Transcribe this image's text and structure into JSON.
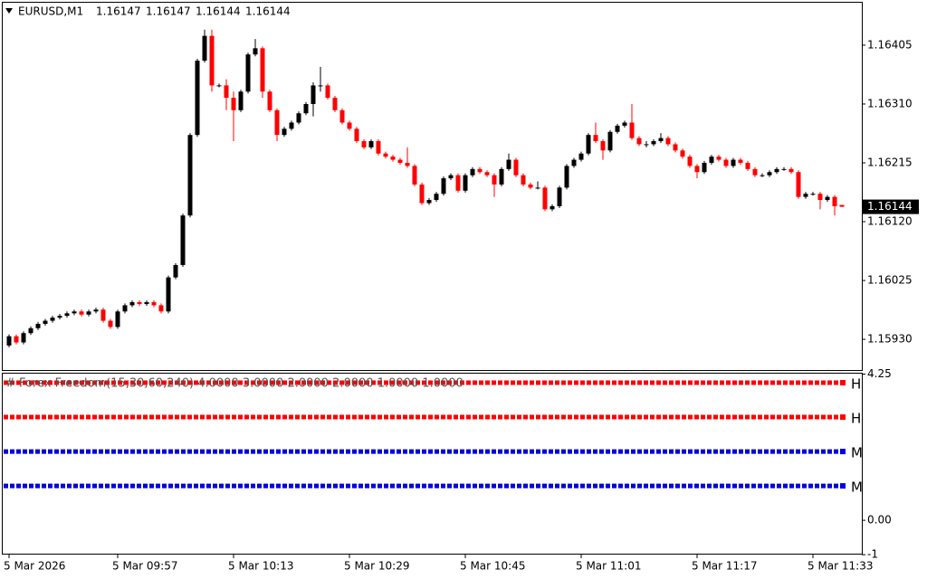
{
  "chart_data": [
    {
      "type": "candlestick",
      "title": "EURUSD,M1",
      "title_prices": [
        1.16147,
        1.16147,
        1.16144,
        1.16144
      ],
      "up_color": "#000000",
      "down_color": "#ff0000",
      "categories": [
        "5 Mar 2026",
        null,
        null,
        null,
        null,
        null,
        null,
        null,
        null,
        null,
        null,
        null,
        null,
        null,
        null,
        "5 Mar 09:57",
        null,
        null,
        null,
        null,
        null,
        null,
        null,
        null,
        null,
        null,
        null,
        null,
        null,
        null,
        null,
        "5 Mar 10:13",
        null,
        null,
        null,
        null,
        null,
        null,
        null,
        null,
        null,
        null,
        null,
        null,
        null,
        null,
        null,
        "5 Mar 10:29",
        null,
        null,
        null,
        null,
        null,
        null,
        null,
        null,
        null,
        null,
        null,
        null,
        null,
        null,
        null,
        "5 Mar 10:45",
        null,
        null,
        null,
        null,
        null,
        null,
        null,
        null,
        null,
        null,
        null,
        null,
        null,
        null,
        null,
        "5 Mar 11:01",
        null,
        null,
        null,
        null,
        null,
        null,
        null,
        null,
        null,
        null,
        null,
        null,
        null,
        null,
        null,
        "5 Mar 11:17",
        null,
        null,
        null,
        null,
        null,
        null,
        null,
        null,
        null,
        null,
        null,
        null,
        null,
        null,
        null,
        "5 Mar 11:33",
        null,
        null,
        null,
        null
      ],
      "ohlc": [
        [
          1.1592,
          1.15938,
          1.15917,
          1.15935
        ],
        [
          1.15935,
          1.15938,
          1.15922,
          1.15925
        ],
        [
          1.15925,
          1.15943,
          1.15922,
          1.1594
        ],
        [
          1.1594,
          1.15951,
          1.15937,
          1.15948
        ],
        [
          1.15948,
          1.15958,
          1.15945,
          1.15955
        ],
        [
          1.15955,
          1.15963,
          1.15952,
          1.1596
        ],
        [
          1.1596,
          1.15968,
          1.15957,
          1.15965
        ],
        [
          1.15965,
          1.15971,
          1.15962,
          1.15968
        ],
        [
          1.15968,
          1.15975,
          1.15965,
          1.15972
        ],
        [
          1.15972,
          1.15978,
          1.15969,
          1.15975
        ],
        [
          1.15975,
          1.15978,
          1.15967,
          1.1597
        ],
        [
          1.1597,
          1.15978,
          1.15967,
          1.15975
        ],
        [
          1.15975,
          1.15981,
          1.15972,
          1.15978
        ],
        [
          1.15978,
          1.15981,
          1.15957,
          1.1596
        ],
        [
          1.1596,
          1.15963,
          1.15947,
          1.1595
        ],
        [
          1.1595,
          1.15978,
          1.15947,
          1.15975
        ],
        [
          1.15975,
          1.15988,
          1.15972,
          1.15985
        ],
        [
          1.15985,
          1.15993,
          1.15982,
          1.1599
        ],
        [
          1.1599,
          1.15993,
          1.15984,
          1.15987
        ],
        [
          1.15987,
          1.15993,
          1.15984,
          1.1599
        ],
        [
          1.1599,
          1.15993,
          1.15982,
          1.15985
        ],
        [
          1.15985,
          1.15988,
          1.15972,
          1.15975
        ],
        [
          1.15975,
          1.16033,
          1.15972,
          1.1603
        ],
        [
          1.1603,
          1.16053,
          1.16027,
          1.1605
        ],
        [
          1.1605,
          1.16133,
          1.16047,
          1.1613
        ],
        [
          1.1613,
          1.16263,
          1.16127,
          1.1626
        ],
        [
          1.1626,
          1.16383,
          1.16257,
          1.1638
        ],
        [
          1.1638,
          1.1643,
          1.16377,
          1.1642
        ],
        [
          1.1642,
          1.1643,
          1.1633,
          1.1634
        ],
        [
          1.1634,
          1.16343,
          1.16337,
          1.1634
        ],
        [
          1.1634,
          1.1635,
          1.163,
          1.1632
        ],
        [
          1.1632,
          1.1633,
          1.1625,
          1.163
        ],
        [
          1.163,
          1.16333,
          1.16297,
          1.1633
        ],
        [
          1.1633,
          1.16393,
          1.16327,
          1.1639
        ],
        [
          1.1639,
          1.16415,
          1.16387,
          1.164
        ],
        [
          1.164,
          1.16403,
          1.1632,
          1.1633
        ],
        [
          1.1633,
          1.16333,
          1.16297,
          1.163
        ],
        [
          1.163,
          1.16303,
          1.1625,
          1.1626
        ],
        [
          1.1626,
          1.16273,
          1.16257,
          1.1627
        ],
        [
          1.1627,
          1.16283,
          1.16267,
          1.1628
        ],
        [
          1.1628,
          1.16298,
          1.16277,
          1.16295
        ],
        [
          1.16295,
          1.16313,
          1.16292,
          1.1631
        ],
        [
          1.1631,
          1.16345,
          1.1629,
          1.1634
        ],
        [
          1.1634,
          1.1637,
          1.1633,
          1.1634
        ],
        [
          1.1634,
          1.16343,
          1.16317,
          1.1632
        ],
        [
          1.1632,
          1.16323,
          1.16297,
          1.163
        ],
        [
          1.163,
          1.16303,
          1.16277,
          1.1628
        ],
        [
          1.1628,
          1.16283,
          1.16267,
          1.1627
        ],
        [
          1.1627,
          1.16273,
          1.16247,
          1.1625
        ],
        [
          1.1625,
          1.16253,
          1.16237,
          1.1624
        ],
        [
          1.1624,
          1.16253,
          1.16237,
          1.1625
        ],
        [
          1.1625,
          1.16253,
          1.16227,
          1.1623
        ],
        [
          1.1623,
          1.16233,
          1.16222,
          1.16225
        ],
        [
          1.16225,
          1.16228,
          1.16217,
          1.1622
        ],
        [
          1.1622,
          1.16223,
          1.16212,
          1.16215
        ],
        [
          1.16215,
          1.1624,
          1.16207,
          1.1621
        ],
        [
          1.1621,
          1.16213,
          1.16177,
          1.1618
        ],
        [
          1.1618,
          1.16183,
          1.16147,
          1.1615
        ],
        [
          1.1615,
          1.16158,
          1.16147,
          1.16155
        ],
        [
          1.16155,
          1.16168,
          1.16152,
          1.16165
        ],
        [
          1.16165,
          1.16193,
          1.16162,
          1.1619
        ],
        [
          1.1619,
          1.16198,
          1.16187,
          1.16195
        ],
        [
          1.16195,
          1.16198,
          1.16167,
          1.1617
        ],
        [
          1.1617,
          1.16198,
          1.16167,
          1.16195
        ],
        [
          1.16195,
          1.16208,
          1.16192,
          1.16205
        ],
        [
          1.16205,
          1.16208,
          1.16197,
          1.162
        ],
        [
          1.162,
          1.16203,
          1.16192,
          1.16195
        ],
        [
          1.16195,
          1.16198,
          1.1616,
          1.1618
        ],
        [
          1.1618,
          1.16208,
          1.16177,
          1.16205
        ],
        [
          1.16205,
          1.1623,
          1.16202,
          1.1622
        ],
        [
          1.1622,
          1.16223,
          1.16192,
          1.16195
        ],
        [
          1.16195,
          1.16198,
          1.16177,
          1.1618
        ],
        [
          1.1618,
          1.16183,
          1.16172,
          1.16175
        ],
        [
          1.16175,
          1.16185,
          1.16172,
          1.16175
        ],
        [
          1.16175,
          1.16178,
          1.16137,
          1.1614
        ],
        [
          1.1614,
          1.16148,
          1.16137,
          1.16145
        ],
        [
          1.16145,
          1.16178,
          1.16142,
          1.16175
        ],
        [
          1.16175,
          1.16213,
          1.16172,
          1.1621
        ],
        [
          1.1621,
          1.16223,
          1.16207,
          1.1622
        ],
        [
          1.1622,
          1.16233,
          1.16217,
          1.1623
        ],
        [
          1.1623,
          1.16263,
          1.16227,
          1.1626
        ],
        [
          1.1626,
          1.1628,
          1.16247,
          1.1625
        ],
        [
          1.1625,
          1.16253,
          1.1622,
          1.16235
        ],
        [
          1.16235,
          1.16268,
          1.16232,
          1.16265
        ],
        [
          1.16265,
          1.16278,
          1.16262,
          1.16275
        ],
        [
          1.16275,
          1.16283,
          1.16272,
          1.1628
        ],
        [
          1.1628,
          1.1631,
          1.16252,
          1.16255
        ],
        [
          1.16255,
          1.16258,
          1.16242,
          1.16245
        ],
        [
          1.16245,
          1.1625,
          1.1624,
          1.16245
        ],
        [
          1.16245,
          1.16253,
          1.16242,
          1.1625
        ],
        [
          1.1625,
          1.16263,
          1.16247,
          1.16255
        ],
        [
          1.16255,
          1.16258,
          1.16242,
          1.16245
        ],
        [
          1.16245,
          1.16248,
          1.16232,
          1.16235
        ],
        [
          1.16235,
          1.16238,
          1.16222,
          1.16225
        ],
        [
          1.16225,
          1.16228,
          1.16207,
          1.1621
        ],
        [
          1.1621,
          1.16213,
          1.1619,
          1.162
        ],
        [
          1.162,
          1.16218,
          1.16197,
          1.16215
        ],
        [
          1.16215,
          1.16228,
          1.16212,
          1.16225
        ],
        [
          1.16225,
          1.16228,
          1.16217,
          1.1622
        ],
        [
          1.1622,
          1.16223,
          1.16207,
          1.1621
        ],
        [
          1.1621,
          1.16223,
          1.16207,
          1.1622
        ],
        [
          1.1622,
          1.16223,
          1.16212,
          1.16215
        ],
        [
          1.16215,
          1.16218,
          1.16202,
          1.16205
        ],
        [
          1.16205,
          1.16208,
          1.16192,
          1.16195
        ],
        [
          1.16195,
          1.16198,
          1.16192,
          1.16195
        ],
        [
          1.16195,
          1.16203,
          1.16192,
          1.162
        ],
        [
          1.162,
          1.16208,
          1.16197,
          1.16205
        ],
        [
          1.16205,
          1.16208,
          1.16202,
          1.16205
        ],
        [
          1.16205,
          1.16208,
          1.16197,
          1.162
        ],
        [
          1.162,
          1.16203,
          1.16157,
          1.1616
        ],
        [
          1.1616,
          1.16168,
          1.16157,
          1.16165
        ],
        [
          1.16165,
          1.16168,
          1.16162,
          1.16165
        ],
        [
          1.16165,
          1.16168,
          1.1614,
          1.16155
        ],
        [
          1.16155,
          1.16163,
          1.16152,
          1.1616
        ],
        [
          1.1616,
          1.16163,
          1.1613,
          1.16145
        ],
        [
          1.16147,
          1.16147,
          1.16144,
          1.16144
        ]
      ],
      "ylim": [
        1.15879,
        1.16475
      ],
      "yticks": [
        1.16405,
        {
          "value": 1.1631,
          "label": "1.16310"
        },
        1.16215,
        {
          "value": 1.1612,
          "label": "1.16120"
        },
        1.16025,
        {
          "value": 1.1593,
          "label": "1.15930"
        }
      ]
    },
    {
      "type": "hline",
      "title": "# Forex Freedom(15,30,60,240) 4.0000 3.0000 2.0000 2.0000 1.0000 1.0000",
      "series": [
        {
          "name": "H",
          "color": "#ff0000",
          "value": 4
        },
        {
          "name": "H",
          "color": "#ff0000",
          "value": 3
        },
        {
          "name": "M",
          "color": "#0000dd",
          "value": 2
        },
        {
          "name": "M",
          "color": "#0000dd",
          "value": 1
        }
      ],
      "ylim": [
        -0.97,
        4.29
      ],
      "yticks": [
        4.25,
        {
          "value": 0,
          "label": "0.00"
        },
        -1
      ]
    }
  ]
}
